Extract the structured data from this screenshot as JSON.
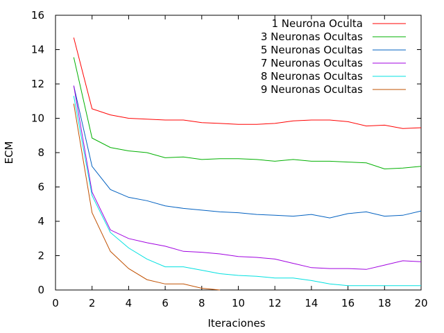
{
  "chart_data": {
    "type": "line",
    "title": "",
    "xlabel": "Iteraciones",
    "ylabel": "ECM",
    "xlim": [
      0,
      20
    ],
    "ylim": [
      0,
      16
    ],
    "xticks": [
      0,
      2,
      4,
      6,
      8,
      10,
      12,
      14,
      16,
      18,
      20
    ],
    "yticks": [
      0,
      2,
      4,
      6,
      8,
      10,
      12,
      14,
      16
    ],
    "grid": false,
    "legend_position": "top-right",
    "series": [
      {
        "name": "1 Neurona Oculta",
        "color": "#ff0000",
        "x": [
          1,
          2,
          3,
          4,
          5,
          6,
          7,
          8,
          9,
          10,
          11,
          12,
          13,
          14,
          15,
          16,
          17,
          18,
          19,
          20
        ],
        "y": [
          14.7,
          10.55,
          10.2,
          10.0,
          9.95,
          9.9,
          9.9,
          9.75,
          9.7,
          9.65,
          9.65,
          9.7,
          9.85,
          9.9,
          9.9,
          9.8,
          9.55,
          9.6,
          9.4,
          9.45
        ]
      },
      {
        "name": "3 Neuronas Ocultas",
        "color": "#00b000",
        "x": [
          1,
          2,
          3,
          4,
          5,
          6,
          7,
          8,
          9,
          10,
          11,
          12,
          13,
          14,
          15,
          16,
          17,
          18,
          19,
          20
        ],
        "y": [
          13.55,
          8.85,
          8.3,
          8.1,
          8.0,
          7.7,
          7.75,
          7.6,
          7.65,
          7.65,
          7.6,
          7.5,
          7.6,
          7.5,
          7.5,
          7.45,
          7.4,
          7.05,
          7.1,
          7.2
        ]
      },
      {
        "name": "5 Neuronas Ocultas",
        "color": "#0060c0",
        "x": [
          1,
          2,
          3,
          4,
          5,
          6,
          7,
          8,
          9,
          10,
          11,
          12,
          13,
          14,
          15,
          16,
          17,
          18,
          19,
          20
        ],
        "y": [
          11.9,
          7.2,
          5.85,
          5.4,
          5.2,
          4.9,
          4.75,
          4.65,
          4.55,
          4.5,
          4.4,
          4.35,
          4.3,
          4.4,
          4.2,
          4.45,
          4.55,
          4.3,
          4.35,
          4.6
        ]
      },
      {
        "name": "7 Neuronas Ocultas",
        "color": "#a000e0",
        "x": [
          1,
          2,
          3,
          4,
          5,
          6,
          7,
          8,
          9,
          10,
          11,
          12,
          13,
          14,
          15,
          16,
          17,
          18,
          19,
          20
        ],
        "y": [
          11.9,
          5.7,
          3.5,
          3.0,
          2.75,
          2.55,
          2.25,
          2.2,
          2.1,
          1.95,
          1.9,
          1.8,
          1.55,
          1.3,
          1.25,
          1.25,
          1.2,
          1.45,
          1.7,
          1.65
        ]
      },
      {
        "name": "8 Neuronas Ocultas",
        "color": "#00e0e0",
        "x": [
          1,
          2,
          3,
          4,
          5,
          6,
          7,
          8,
          9,
          10,
          11,
          12,
          13,
          14,
          15,
          16,
          17,
          18,
          19,
          20
        ],
        "y": [
          11.3,
          5.5,
          3.35,
          2.45,
          1.8,
          1.35,
          1.35,
          1.15,
          0.95,
          0.85,
          0.8,
          0.7,
          0.7,
          0.55,
          0.35,
          0.25,
          0.25,
          0.25,
          0.25,
          0.25
        ]
      },
      {
        "name": "9 Neuronas Ocultas",
        "color": "#c05000",
        "x": [
          1,
          2,
          3,
          4,
          5,
          6,
          7,
          8,
          9
        ],
        "y": [
          10.85,
          4.5,
          2.25,
          1.25,
          0.6,
          0.35,
          0.35,
          0.1,
          0.0
        ]
      }
    ]
  }
}
